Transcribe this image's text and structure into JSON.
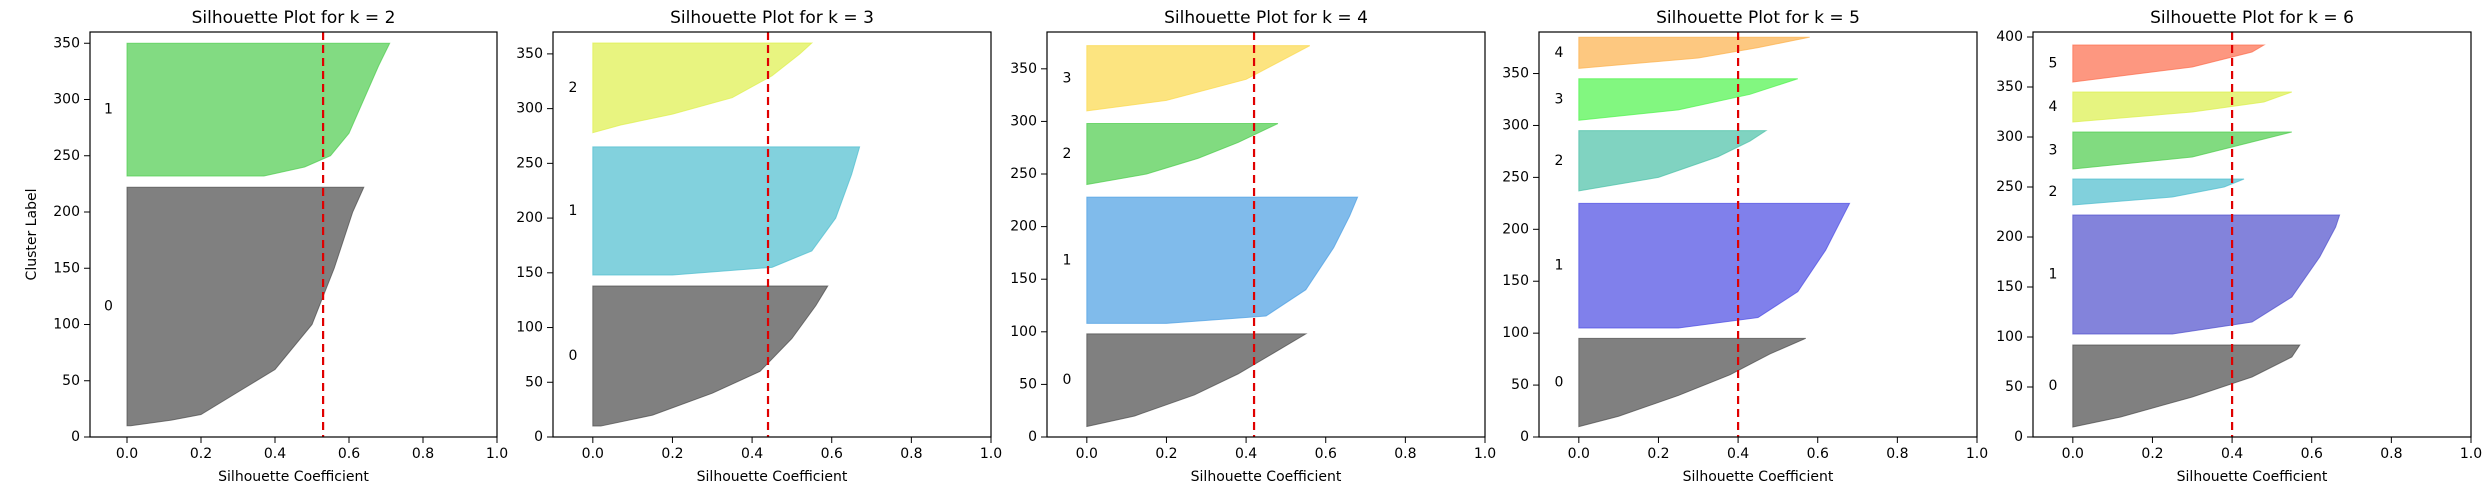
{
  "chart_data": [
    {
      "type": "silhouette",
      "title": "Silhouette Plot for k = 2",
      "x_label": "Silhouette Coefficient",
      "y_label": "Cluster Label",
      "xlim": [
        -0.1,
        1
      ],
      "xticks": [
        {
          "value": 0,
          "label": "0.0"
        },
        0.2,
        0.4,
        0.6,
        0.8,
        {
          "value": 1,
          "label": "1.0"
        }
      ],
      "ylim": [
        0,
        360
      ],
      "yticks": [
        0,
        50,
        100,
        150,
        200,
        250,
        300,
        350
      ],
      "mean_score": 0.53,
      "series": [
        {
          "name": "0",
          "color": "#4a4a4a",
          "y": [
            10,
            15,
            20,
            40,
            60,
            100,
            150,
            200,
            222
          ],
          "values": [
            0.01,
            0.12,
            0.2,
            0.3,
            0.4,
            0.5,
            0.56,
            0.61,
            0.64
          ]
        },
        {
          "name": "1",
          "color": "#4dcc4d",
          "y": [
            232,
            240,
            250,
            270,
            300,
            330,
            350
          ],
          "values": [
            0.37,
            0.48,
            0.55,
            0.6,
            0.64,
            0.68,
            0.71
          ]
        }
      ]
    },
    {
      "type": "silhouette",
      "title": "Silhouette Plot for k = 3",
      "x_label": "Silhouette Coefficient",
      "xlim": [
        -0.1,
        1
      ],
      "xticks": [
        {
          "value": 0,
          "label": "0.0"
        },
        0.2,
        0.4,
        0.6,
        0.8,
        {
          "value": 1,
          "label": "1.0"
        }
      ],
      "ylim": [
        0,
        370
      ],
      "yticks": [
        0,
        50,
        100,
        150,
        200,
        250,
        300,
        350
      ],
      "mean_score": 0.44,
      "series": [
        {
          "name": "0",
          "color": "#4a4a4a",
          "y": [
            10,
            20,
            40,
            60,
            90,
            120,
            138
          ],
          "values": [
            0.02,
            0.15,
            0.3,
            0.42,
            0.5,
            0.56,
            0.59
          ]
        },
        {
          "name": "1",
          "color": "#4dbecf",
          "y": [
            148,
            155,
            170,
            200,
            240,
            265
          ],
          "values": [
            0.2,
            0.45,
            0.55,
            0.61,
            0.65,
            0.67
          ]
        },
        {
          "name": "2",
          "color": "#deef4a",
          "y": [
            278,
            285,
            295,
            310,
            330,
            350,
            360
          ],
          "values": [
            0.0,
            0.07,
            0.2,
            0.35,
            0.45,
            0.52,
            0.55
          ]
        }
      ]
    },
    {
      "type": "silhouette",
      "title": "Silhouette Plot for k = 4",
      "x_label": "Silhouette Coefficient",
      "xlim": [
        -0.1,
        1
      ],
      "xticks": [
        {
          "value": 0,
          "label": "0.0"
        },
        0.2,
        0.4,
        0.6,
        0.8,
        {
          "value": 1,
          "label": "1.0"
        }
      ],
      "ylim": [
        0,
        385
      ],
      "yticks": [
        0,
        50,
        100,
        150,
        200,
        250,
        300,
        350
      ],
      "mean_score": 0.42,
      "series": [
        {
          "name": "0",
          "color": "#4a4a4a",
          "y": [
            10,
            20,
            40,
            60,
            80,
            98
          ],
          "values": [
            0.0,
            0.12,
            0.27,
            0.38,
            0.47,
            0.55
          ]
        },
        {
          "name": "1",
          "color": "#4a9ee3",
          "y": [
            108,
            115,
            140,
            180,
            210,
            228
          ],
          "values": [
            0.2,
            0.45,
            0.55,
            0.62,
            0.66,
            0.68
          ]
        },
        {
          "name": "2",
          "color": "#4ccc4a",
          "y": [
            240,
            250,
            265,
            280,
            298
          ],
          "values": [
            0.0,
            0.15,
            0.28,
            0.38,
            0.48
          ]
        },
        {
          "name": "3",
          "color": "#fbd84a",
          "y": [
            310,
            320,
            340,
            360,
            372
          ],
          "values": [
            0.0,
            0.2,
            0.4,
            0.5,
            0.56
          ]
        }
      ]
    },
    {
      "type": "silhouette",
      "title": "Silhouette Plot for k = 5",
      "x_label": "Silhouette Coefficient",
      "xlim": [
        -0.1,
        1
      ],
      "xticks": [
        {
          "value": 0,
          "label": "0.0"
        },
        0.2,
        0.4,
        0.6,
        0.8,
        {
          "value": 1,
          "label": "1.0"
        }
      ],
      "ylim": [
        0,
        390
      ],
      "yticks": [
        0,
        50,
        100,
        150,
        200,
        250,
        300,
        350
      ],
      "mean_score": 0.4,
      "series": [
        {
          "name": "0",
          "color": "#4a4a4a",
          "y": [
            10,
            20,
            40,
            60,
            80,
            95
          ],
          "values": [
            0.0,
            0.1,
            0.25,
            0.38,
            0.48,
            0.57
          ]
        },
        {
          "name": "1",
          "color": "#4a4ae3",
          "y": [
            105,
            115,
            140,
            180,
            210,
            225
          ],
          "values": [
            0.25,
            0.45,
            0.55,
            0.62,
            0.66,
            0.68
          ]
        },
        {
          "name": "2",
          "color": "#4ac1a6",
          "y": [
            237,
            250,
            270,
            285,
            295
          ],
          "values": [
            0.0,
            0.2,
            0.35,
            0.43,
            0.47
          ]
        },
        {
          "name": "3",
          "color": "#4df44a",
          "y": [
            305,
            315,
            330,
            345
          ],
          "values": [
            0.0,
            0.25,
            0.43,
            0.55
          ]
        },
        {
          "name": "4",
          "color": "#fcb04a",
          "y": [
            355,
            365,
            375,
            385
          ],
          "values": [
            0.0,
            0.3,
            0.45,
            0.58
          ]
        }
      ]
    },
    {
      "type": "silhouette",
      "title": "Silhouette Plot for k = 6",
      "x_label": "Silhouette Coefficient",
      "xlim": [
        -0.1,
        1
      ],
      "xticks": [
        {
          "value": 0,
          "label": "0.0"
        },
        0.2,
        0.4,
        0.6,
        0.8,
        {
          "value": 1,
          "label": "1.0"
        }
      ],
      "ylim": [
        0,
        405
      ],
      "yticks": [
        0,
        50,
        100,
        150,
        200,
        250,
        300,
        350,
        400
      ],
      "mean_score": 0.4,
      "series": [
        {
          "name": "0",
          "color": "#4a4a4a",
          "y": [
            10,
            20,
            40,
            60,
            80,
            92
          ],
          "values": [
            0.0,
            0.12,
            0.3,
            0.45,
            0.55,
            0.57
          ]
        },
        {
          "name": "1",
          "color": "#4e4ecc",
          "y": [
            103,
            115,
            140,
            180,
            210,
            222
          ],
          "values": [
            0.25,
            0.45,
            0.55,
            0.62,
            0.66,
            0.67
          ]
        },
        {
          "name": "2",
          "color": "#4cbccd",
          "y": [
            232,
            240,
            250,
            258
          ],
          "values": [
            0.0,
            0.25,
            0.38,
            0.43
          ]
        },
        {
          "name": "3",
          "color": "#4ccc4a",
          "y": [
            268,
            280,
            295,
            305
          ],
          "values": [
            0.0,
            0.3,
            0.45,
            0.55
          ]
        },
        {
          "name": "4",
          "color": "#dbef4a",
          "y": [
            315,
            325,
            335,
            345
          ],
          "values": [
            0.0,
            0.3,
            0.48,
            0.55
          ]
        },
        {
          "name": "5",
          "color": "#fc6b4a",
          "y": [
            355,
            370,
            385,
            392
          ],
          "values": [
            0.0,
            0.3,
            0.45,
            0.48
          ]
        }
      ]
    }
  ]
}
